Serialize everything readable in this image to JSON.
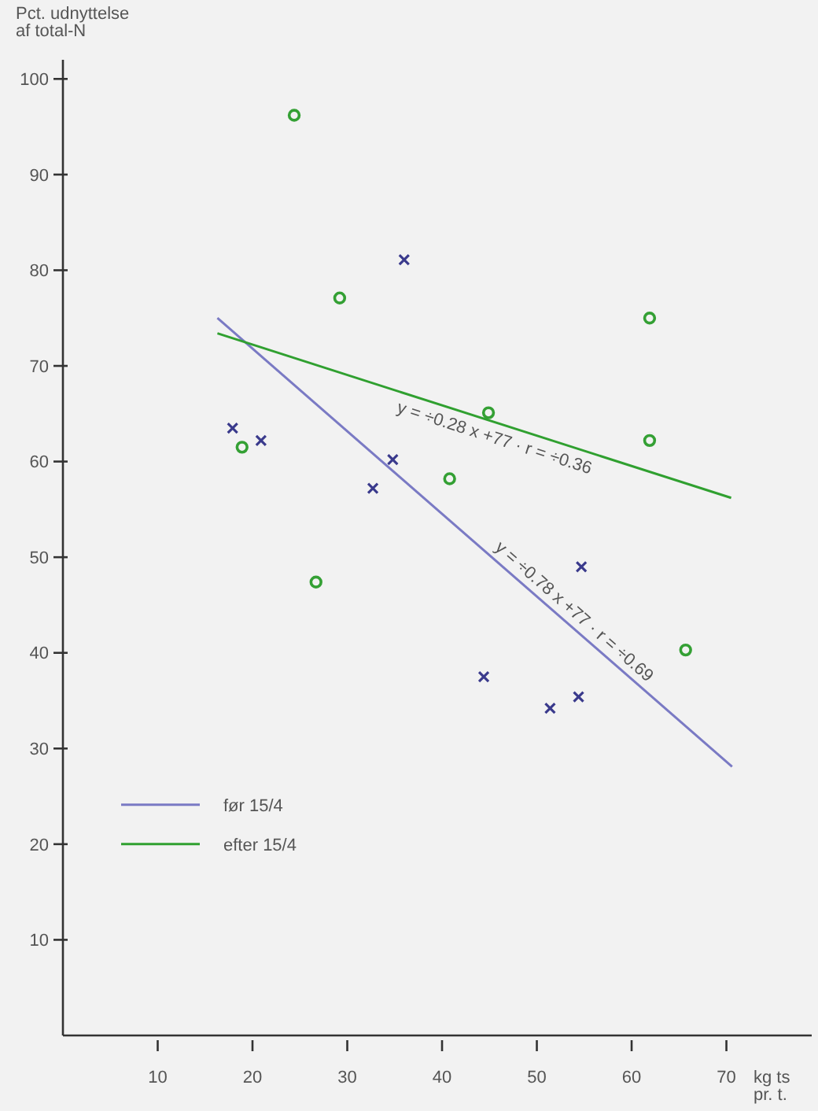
{
  "chart_data": {
    "type": "scatter",
    "ylabel": "Pct. udnyttelse\naf total-N",
    "xlabel": "kg ts\npr. t.",
    "xlim": [
      0,
      79
    ],
    "ylim": [
      0,
      102
    ],
    "xticks": [
      10,
      20,
      30,
      40,
      50,
      60,
      70
    ],
    "yticks": [
      10,
      20,
      30,
      40,
      50,
      60,
      70,
      80,
      90,
      100
    ],
    "grid": false,
    "legend": "bottom left",
    "series": [
      {
        "marker": "cross",
        "color": "#3a3a8c",
        "x": [
          17.9,
          20.9,
          32.7,
          34.8,
          36,
          44.4,
          51.4,
          54.4,
          54.7
        ],
        "values": [
          63.5,
          62.2,
          57.2,
          60.2,
          81.1,
          37.5,
          34.2,
          35.4,
          49
        ]
      },
      {
        "marker": "circle",
        "color": "#34a034",
        "x": [
          24.4,
          29.2,
          18.9,
          26.7,
          44.9,
          40.8,
          61.9,
          61.9,
          65.7
        ],
        "values": [
          96.2,
          77.1,
          61.5,
          47.4,
          65.1,
          58.2,
          75,
          62.2,
          40.3
        ]
      },
      {
        "type": "line",
        "name": "før 15/4",
        "color": "#7a7ac4",
        "x": [
          16.3,
          70.6
        ],
        "values": [
          75,
          28.1
        ]
      },
      {
        "type": "line",
        "name": "efter 15/4",
        "color": "#30a030",
        "x": [
          16.3,
          70.5
        ],
        "values": [
          73.4,
          56.2
        ]
      }
    ],
    "annotations": [
      "y = ÷0.28 x +77 · r = ÷0.36",
      "y = ÷0.78 x +77 · r = ÷0.69"
    ]
  }
}
